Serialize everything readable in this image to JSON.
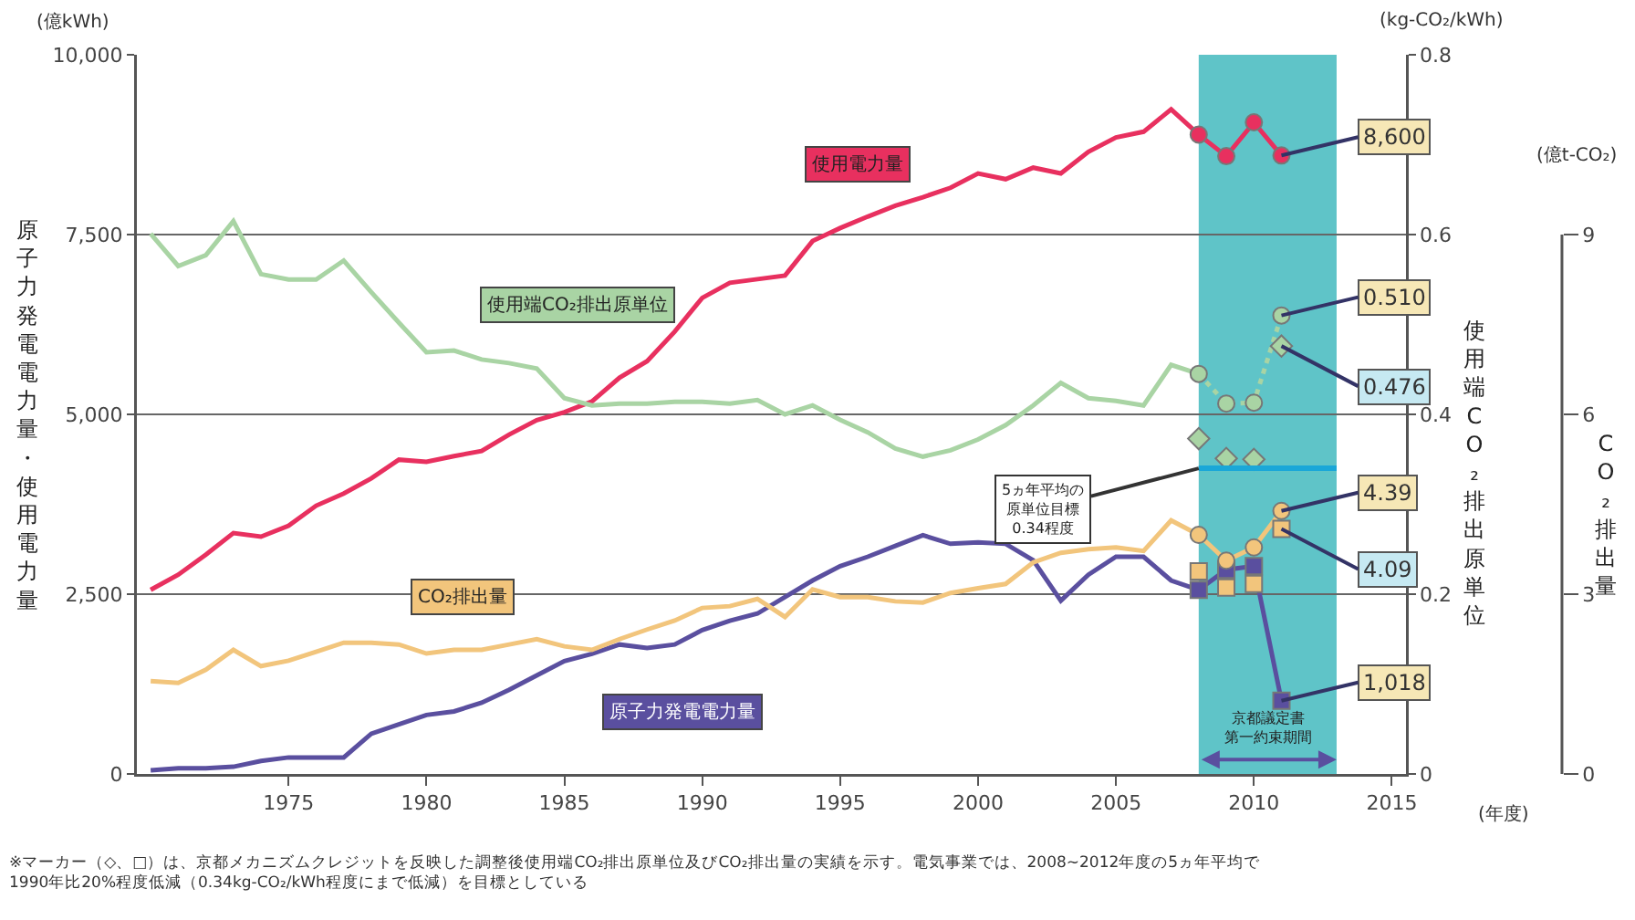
{
  "chart_data": {
    "type": "line",
    "xlim": [
      1969.5,
      2015.5
    ],
    "xticks": [
      1975,
      1980,
      1985,
      1990,
      1995,
      2000,
      2005,
      2010,
      2015
    ],
    "ylim": [
      0,
      10000
    ],
    "yticks": [
      0,
      {
        "value": 2500,
        "label": "2,500"
      },
      {
        "value": 5000,
        "label": "5,000"
      },
      {
        "value": 7500,
        "label": "7,500"
      },
      {
        "value": 10000,
        "label": "10,000"
      }
    ],
    "y2lim": [
      0,
      0.8
    ],
    "y2ticks": [
      0,
      0.2,
      0.4,
      0.6,
      0.8
    ],
    "y3lim": [
      0,
      12
    ],
    "y3ticks": [
      0,
      3,
      6,
      9
    ],
    "ylabel": "原子力発電電力量・使用電力量",
    "y2label": "使用端CO₂排出原単位",
    "y3label": "CO₂排出量",
    "grid": "y",
    "legend": false,
    "series": [
      {
        "name": "使用電力量",
        "axis": "y",
        "color": "#e8305f",
        "x": [
          1970,
          1971,
          1972,
          1973,
          1974,
          1975,
          1976,
          1977,
          1978,
          1979,
          1980,
          1981,
          1982,
          1983,
          1984,
          1985,
          1986,
          1987,
          1988,
          1989,
          1990,
          1991,
          1992,
          1993,
          1994,
          1995,
          1996,
          1997,
          1998,
          1999,
          2000,
          2001,
          2002,
          2003,
          2004,
          2005,
          2006,
          2007,
          2008
        ],
        "values": [
          2560,
          2770,
          3050,
          3350,
          3300,
          3450,
          3730,
          3900,
          4110,
          4370,
          4340,
          4420,
          4490,
          4720,
          4920,
          5030,
          5180,
          5510,
          5740,
          6150,
          6620,
          6830,
          6880,
          6930,
          7410,
          7590,
          7750,
          7900,
          8020,
          8150,
          8350,
          8270,
          8430,
          8350,
          8650,
          8850,
          8930,
          9240,
          8890
        ]
      },
      {
        "axis": "y",
        "color": "#e8305f",
        "marker": "circle",
        "x": [
          2008,
          2009,
          2010,
          2011
        ],
        "values": [
          8890,
          8590,
          9060,
          8600
        ],
        "value_labels": [
          null,
          null,
          null,
          "8,600"
        ]
      },
      {
        "name": "使用端CO₂排出原単位",
        "axis": "y2",
        "color": "#a9d4a4",
        "x": [
          1970,
          1971,
          1972,
          1973,
          1974,
          1975,
          1976,
          1977,
          1978,
          1979,
          1980,
          1981,
          1982,
          1983,
          1984,
          1985,
          1986,
          1987,
          1988,
          1989,
          1990,
          1991,
          1992,
          1993,
          1994,
          1995,
          1996,
          1997,
          1998,
          1999,
          2000,
          2001,
          2002,
          2003,
          2004,
          2005,
          2006,
          2007,
          2008
        ],
        "values": [
          0.601,
          0.565,
          0.577,
          0.615,
          0.556,
          0.55,
          0.55,
          0.571,
          0.536,
          0.502,
          0.469,
          0.471,
          0.461,
          0.457,
          0.451,
          0.418,
          0.41,
          0.412,
          0.412,
          0.414,
          0.414,
          0.412,
          0.416,
          0.4,
          0.41,
          0.394,
          0.38,
          0.362,
          0.353,
          0.36,
          0.372,
          0.388,
          0.41,
          0.435,
          0.418,
          0.415,
          0.41,
          0.455,
          0.445
        ]
      },
      {
        "axis": "y2",
        "color": "#a9d4a4",
        "marker": "circle",
        "line_style": "dotted",
        "x": [
          2008,
          2009,
          2010,
          2011
        ],
        "values": [
          0.445,
          0.412,
          0.413,
          0.51
        ],
        "value_labels": [
          null,
          null,
          null,
          "0.510"
        ]
      },
      {
        "type": "scatter",
        "axis": "y2",
        "color": "#a9d4a4",
        "marker": "diamond",
        "x": [
          2008,
          2009,
          2010,
          2011
        ],
        "values": [
          0.373,
          0.351,
          0.35,
          0.476
        ],
        "value_labels": [
          null,
          null,
          null,
          "0.476"
        ]
      },
      {
        "name": "CO₂排出量",
        "axis": "y3",
        "color": "#f2c57c",
        "x": [
          1970,
          1971,
          1972,
          1973,
          1974,
          1975,
          1976,
          1977,
          1978,
          1979,
          1980,
          1981,
          1982,
          1983,
          1984,
          1985,
          1986,
          1987,
          1988,
          1989,
          1990,
          1991,
          1992,
          1993,
          1994,
          1995,
          1996,
          1997,
          1998,
          1999,
          2000,
          2001,
          2002,
          2003,
          2004,
          2005,
          2006,
          2007,
          2008
        ],
        "values": [
          1.55,
          1.52,
          1.74,
          2.07,
          1.8,
          1.89,
          2.04,
          2.19,
          2.19,
          2.16,
          2.01,
          2.07,
          2.07,
          2.16,
          2.25,
          2.13,
          2.07,
          2.25,
          2.41,
          2.56,
          2.77,
          2.8,
          2.92,
          2.62,
          3.08,
          2.95,
          2.95,
          2.88,
          2.86,
          3.02,
          3.1,
          3.17,
          3.53,
          3.69,
          3.75,
          3.78,
          3.72,
          4.23,
          3.99
        ]
      },
      {
        "axis": "y3",
        "color": "#f2c57c",
        "marker": "circle",
        "x": [
          2008,
          2009,
          2010,
          2011
        ],
        "values": [
          3.99,
          3.56,
          3.78,
          4.39
        ],
        "value_labels": [
          null,
          null,
          null,
          "4.39"
        ]
      },
      {
        "type": "scatter",
        "axis": "y3",
        "color": "#f2c57c",
        "marker": "square",
        "x": [
          2008,
          2009,
          2010,
          2011
        ],
        "values": [
          3.38,
          3.11,
          3.17,
          4.09
        ],
        "value_labels": [
          null,
          null,
          null,
          "4.09"
        ]
      },
      {
        "name": "原子力発電電力量",
        "axis": "y",
        "color": "#5a4f9f",
        "x": [
          1970,
          1971,
          1972,
          1973,
          1974,
          1975,
          1976,
          1977,
          1978,
          1979,
          1980,
          1981,
          1982,
          1983,
          1984,
          1985,
          1986,
          1987,
          1988,
          1989,
          1990,
          1991,
          1992,
          1993,
          1994,
          1995,
          1996,
          1997,
          1998,
          1999,
          2000,
          2001,
          2002,
          2003,
          2004,
          2005,
          2006,
          2007,
          2008
        ],
        "values": [
          50,
          80,
          80,
          100,
          180,
          230,
          230,
          230,
          560,
          690,
          820,
          870,
          990,
          1170,
          1370,
          1570,
          1670,
          1800,
          1750,
          1800,
          2000,
          2130,
          2230,
          2460,
          2690,
          2890,
          3020,
          3170,
          3320,
          3200,
          3220,
          3200,
          2970,
          2410,
          2770,
          3020,
          3020,
          2690,
          2560
        ]
      },
      {
        "axis": "y",
        "color": "#5a4f9f",
        "marker": "square",
        "x": [
          2008,
          2009,
          2010,
          2011
        ],
        "values": [
          2560,
          2840,
          2890,
          1018
        ],
        "value_labels": [
          null,
          null,
          null,
          "1,018"
        ]
      }
    ],
    "bands": [
      {
        "axis": "x",
        "from": 2008,
        "to": 2013,
        "label": "京都議定書第一約束期間",
        "color": "#5fc4c8"
      }
    ],
    "ref_lines": [
      {
        "axis": "y2",
        "value": 0.34,
        "label": "5ヵ年平均の原単位目標0.34程度",
        "color": "#1aa7d8"
      }
    ],
    "annotations": [
      "(億kWh)",
      "(kg-CO₂/kWh)",
      "(億t-CO₂)",
      "(年度)",
      "※マーカー（◇、□）は、京都メカニズムクレジットを反映した調整後使用端CO₂排出原単位及びCO₂排出量の実績を示す。電気事業では、2008~2012年度の5ヵ年平均で\n1990年比20%程度低減（0.34kg-CO₂/kWh程度にまで低減）を目標としている"
    ]
  }
}
